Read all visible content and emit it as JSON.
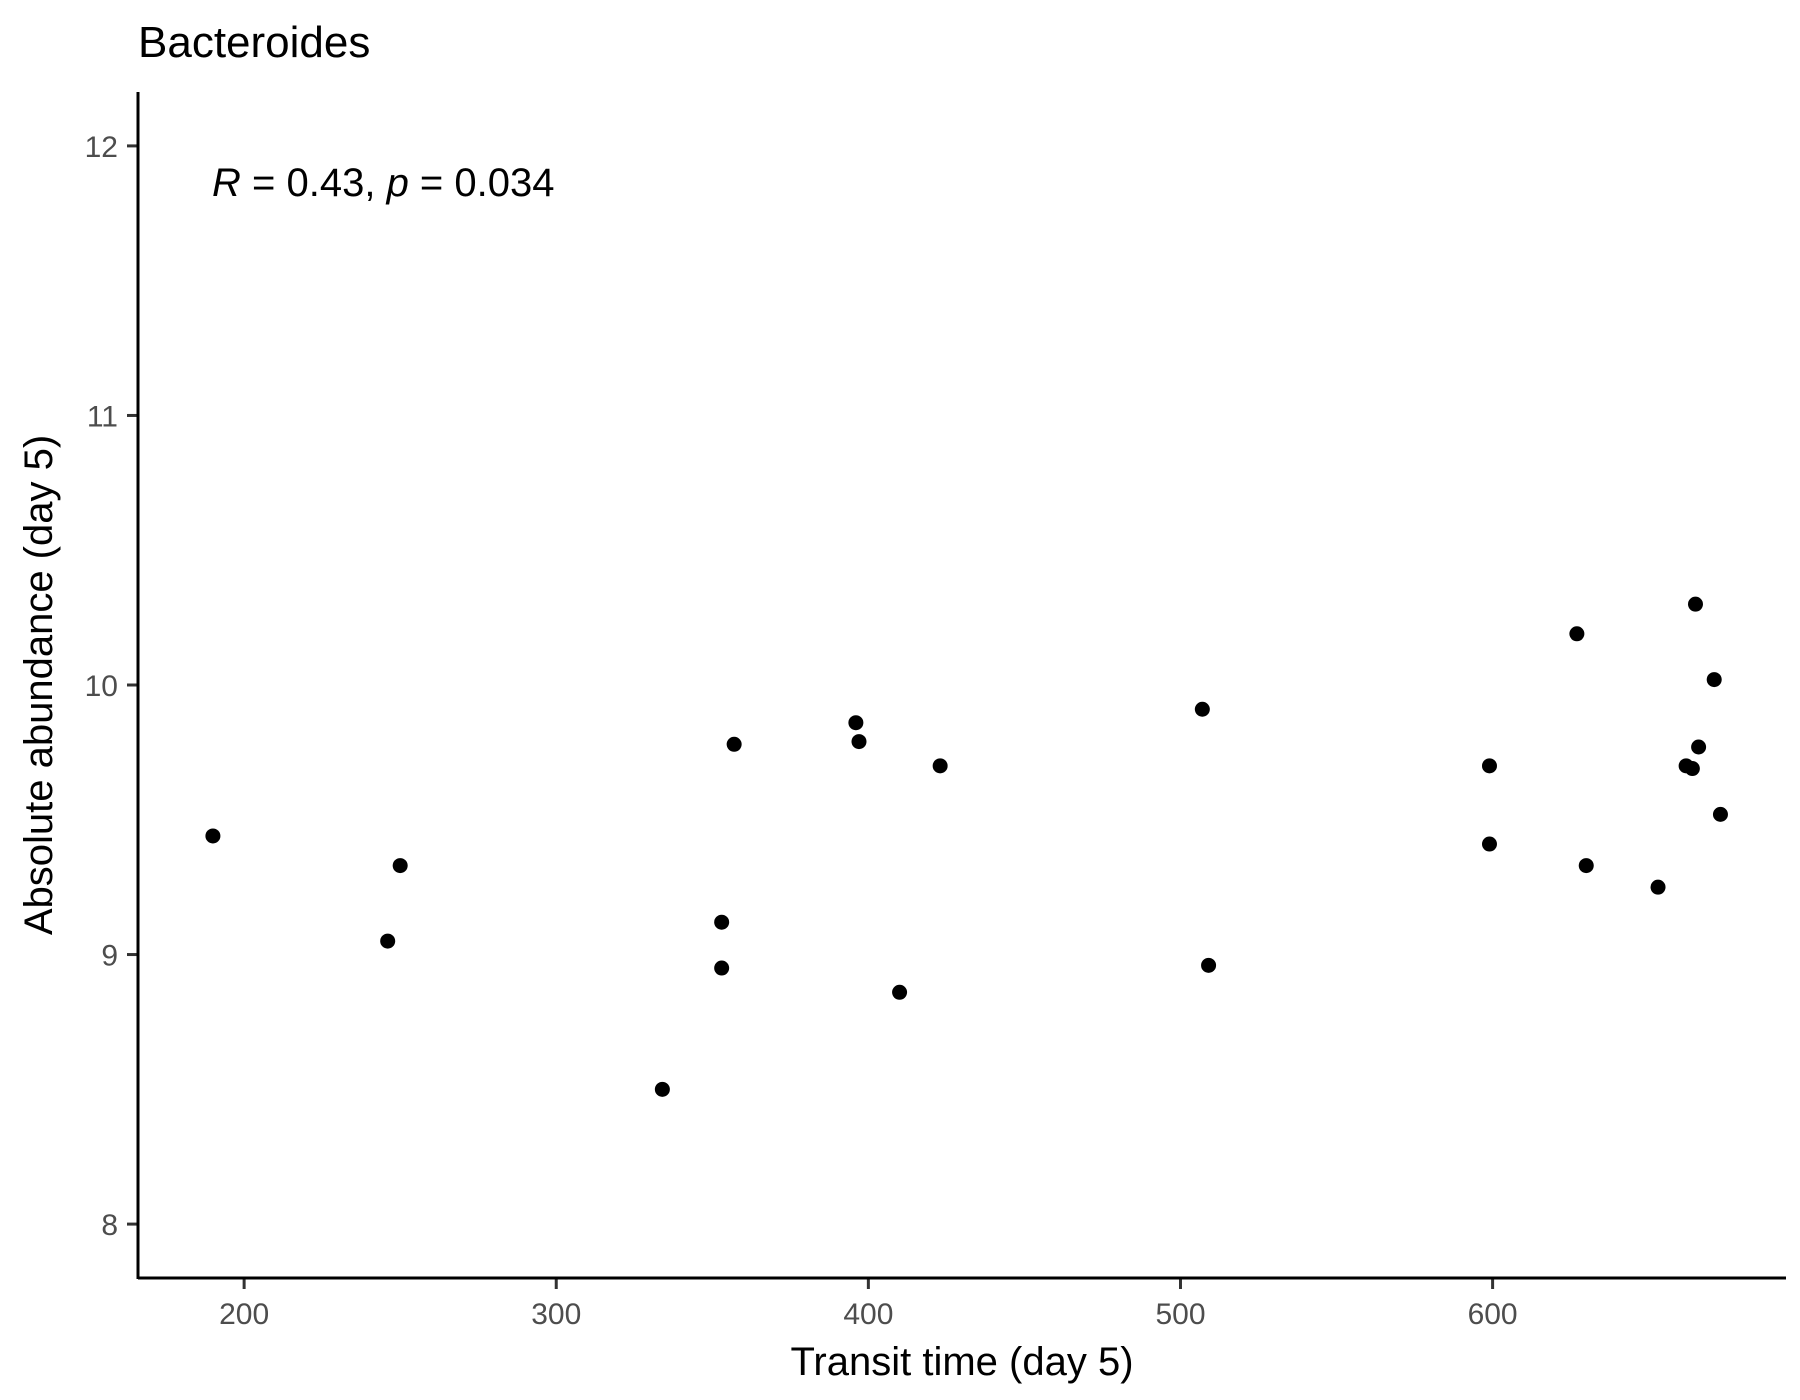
{
  "chart_data": {
    "type": "scatter",
    "title": "Bacteroides",
    "xlabel": "Transit time (day 5)",
    "ylabel": "Absolute abundance (day 5)",
    "xlim": [
      166,
      694
    ],
    "ylim": [
      7.8,
      12.2
    ],
    "x_ticks": [
      200,
      300,
      400,
      500,
      600
    ],
    "y_ticks": [
      8,
      9,
      10,
      11,
      12
    ],
    "grid": false,
    "point_color": "#000000",
    "annotation": {
      "r_symbol": "R",
      "r_text": " = 0.43, ",
      "p_symbol": "p",
      "p_text": " = 0.034"
    },
    "points": [
      {
        "x": 190,
        "y": 9.44
      },
      {
        "x": 246,
        "y": 9.05
      },
      {
        "x": 250,
        "y": 9.33
      },
      {
        "x": 334,
        "y": 8.5
      },
      {
        "x": 353,
        "y": 9.12
      },
      {
        "x": 353,
        "y": 8.95
      },
      {
        "x": 357,
        "y": 9.78
      },
      {
        "x": 396,
        "y": 9.86
      },
      {
        "x": 397,
        "y": 9.79
      },
      {
        "x": 410,
        "y": 8.86
      },
      {
        "x": 423,
        "y": 9.7
      },
      {
        "x": 507,
        "y": 9.91
      },
      {
        "x": 509,
        "y": 8.96
      },
      {
        "x": 599,
        "y": 9.7
      },
      {
        "x": 599,
        "y": 9.41
      },
      {
        "x": 627,
        "y": 10.19
      },
      {
        "x": 630,
        "y": 9.33
      },
      {
        "x": 653,
        "y": 9.25
      },
      {
        "x": 662,
        "y": 9.7
      },
      {
        "x": 664,
        "y": 9.69
      },
      {
        "x": 665,
        "y": 10.3
      },
      {
        "x": 666,
        "y": 9.77
      },
      {
        "x": 671,
        "y": 10.02
      },
      {
        "x": 673,
        "y": 9.52
      }
    ]
  }
}
